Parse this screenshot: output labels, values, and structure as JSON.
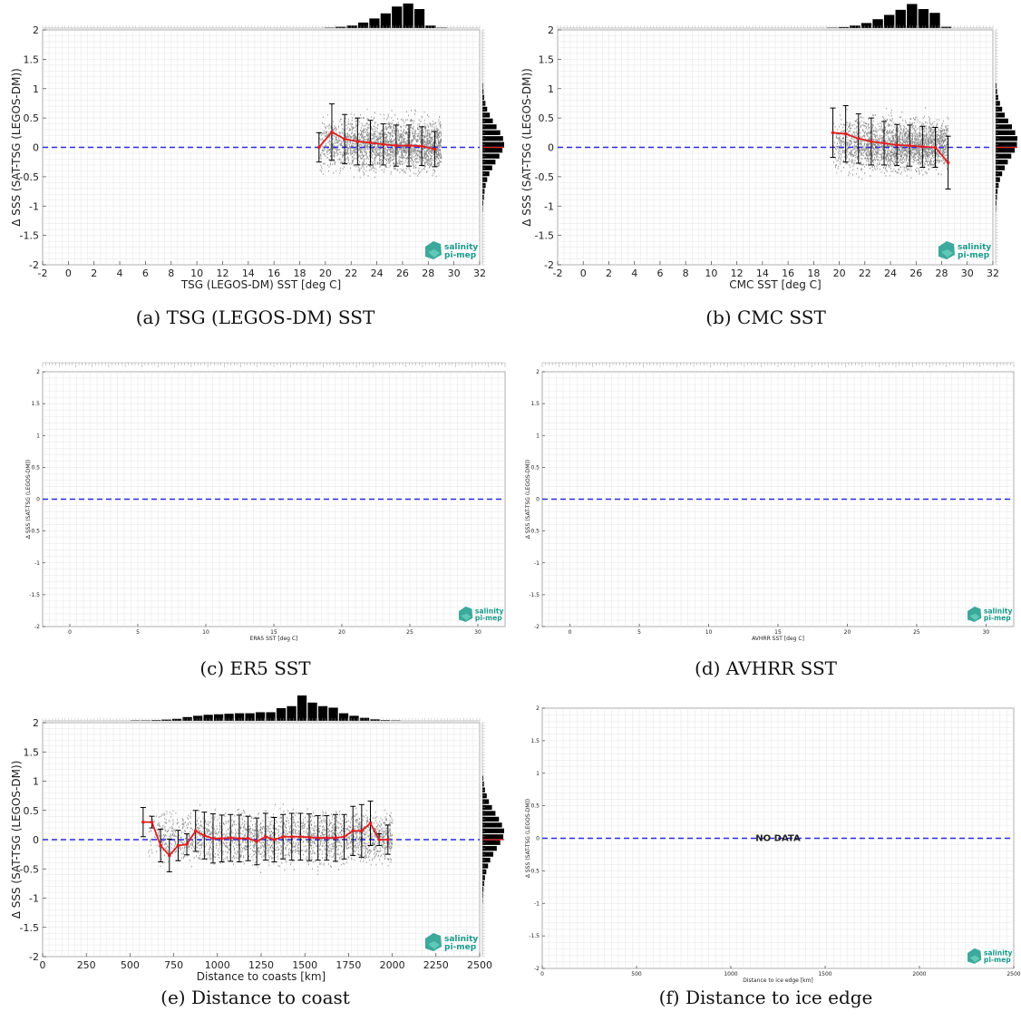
{
  "chart_data": [
    {
      "id": "a",
      "type": "scatter",
      "caption": "(a) TSG (LEGOS-DM) SST",
      "xlabel": "TSG (LEGOS-DM) SST [deg C]",
      "ylabel": "Δ SSS (SAT-TSG (LEGOS-DM))",
      "xlim": [
        -2,
        32
      ],
      "ylim": [
        -2,
        2
      ],
      "xticks": [
        -2,
        0,
        2,
        4,
        6,
        8,
        10,
        12,
        14,
        16,
        18,
        20,
        22,
        24,
        26,
        28,
        30,
        32
      ],
      "yticks": [
        -2,
        -1.5,
        -1,
        -0.5,
        0,
        0.5,
        1,
        1.5,
        2
      ],
      "scatter_x_range": [
        19.5,
        29
      ],
      "scatter_y_spread": 0.5,
      "x": [
        19.5,
        20.5,
        21.5,
        22.5,
        23.5,
        24.5,
        25.5,
        26.5,
        27.5,
        28.5
      ],
      "mean": [
        0.0,
        0.26,
        0.14,
        0.1,
        0.08,
        0.05,
        0.03,
        0.03,
        0.02,
        -0.03
      ],
      "std": [
        0.25,
        0.48,
        0.42,
        0.4,
        0.38,
        0.35,
        0.35,
        0.35,
        0.33,
        0.3
      ],
      "top_hist": [
        0,
        0.02,
        0.05,
        0.1,
        0.22,
        0.38,
        0.58,
        0.85,
        0.97,
        0.75,
        0.1,
        0.02
      ],
      "top_hist_x": [
        19,
        29.5
      ],
      "right_hist": [
        0.02,
        0.04,
        0.07,
        0.1,
        0.15,
        0.22,
        0.32,
        0.45,
        0.6,
        0.78,
        0.92,
        1.0,
        0.95,
        0.82,
        0.65,
        0.48,
        0.34,
        0.22,
        0.14,
        0.08,
        0.05,
        0.03
      ],
      "right_hist_y": [
        -1.1,
        1.1
      ]
    },
    {
      "id": "b",
      "type": "scatter",
      "caption": "(b) CMC SST",
      "xlabel": "CMC SST [deg C]",
      "ylabel": "Δ SSS (SAT-TSG (LEGOS-DM))",
      "xlim": [
        -2,
        32
      ],
      "ylim": [
        -2,
        2
      ],
      "xticks": [
        -2,
        0,
        2,
        4,
        6,
        8,
        10,
        12,
        14,
        16,
        18,
        20,
        22,
        24,
        26,
        28,
        30,
        32
      ],
      "yticks": [
        -2,
        -1.5,
        -1,
        -0.5,
        0,
        0.5,
        1,
        1.5,
        2
      ],
      "scatter_x_range": [
        19.5,
        28.5
      ],
      "scatter_y_spread": 0.5,
      "x": [
        19.5,
        20.5,
        21.5,
        22.5,
        23.5,
        24.5,
        25.5,
        26.5,
        27.5,
        28.5
      ],
      "mean": [
        0.25,
        0.23,
        0.15,
        0.1,
        0.07,
        0.04,
        0.03,
        0.01,
        0.0,
        -0.26
      ],
      "std": [
        0.42,
        0.48,
        0.42,
        0.4,
        0.37,
        0.35,
        0.35,
        0.35,
        0.34,
        0.45
      ],
      "top_hist": [
        0.02,
        0.04,
        0.1,
        0.2,
        0.35,
        0.52,
        0.72,
        0.95,
        0.75,
        0.6,
        0.05
      ],
      "top_hist_x": [
        19,
        28.8
      ],
      "right_hist": [
        0.02,
        0.04,
        0.06,
        0.09,
        0.14,
        0.2,
        0.3,
        0.42,
        0.56,
        0.72,
        0.88,
        0.98,
        1.0,
        0.9,
        0.75,
        0.58,
        0.42,
        0.3,
        0.2,
        0.12,
        0.07,
        0.04
      ],
      "right_hist_y": [
        -1.1,
        1.1
      ]
    },
    {
      "id": "c",
      "type": "scatter",
      "caption": "(c) ER5 SST",
      "xlabel": "ERA5 SST [deg C]",
      "ylabel": "Δ SSS (SAT-TSG (LEGOS-DM))",
      "xlim": [
        -2,
        32
      ],
      "ylim": [
        -2,
        2
      ],
      "xticks": [
        0,
        5,
        10,
        15,
        20,
        25,
        30
      ],
      "yticks": [
        -2,
        -1.5,
        -1,
        -0.5,
        0,
        0.5,
        1,
        1.5,
        2
      ]
    },
    {
      "id": "d",
      "type": "scatter",
      "caption": "(d) AVHRR SST",
      "xlabel": "AVHRR SST [deg C]",
      "ylabel": "Δ SSS (SAT-TSG (LEGOS-DM))",
      "xlim": [
        -2,
        32
      ],
      "ylim": [
        -2,
        2
      ],
      "xticks": [
        0,
        5,
        10,
        15,
        20,
        25,
        30
      ],
      "yticks": [
        -2,
        -1.5,
        -1,
        -0.5,
        0,
        0.5,
        1,
        1.5,
        2
      ]
    },
    {
      "id": "e",
      "type": "scatter",
      "caption": "(e) Distance to coast",
      "xlabel": "Distance to coasts [km]",
      "ylabel": "Δ SSS (SAT-TSG (LEGOS-DM))",
      "xlim": [
        0,
        2500
      ],
      "ylim": [
        -2,
        2
      ],
      "xticks": [
        0,
        250,
        500,
        750,
        1000,
        1250,
        1500,
        1750,
        2000,
        2250,
        2500
      ],
      "yticks": [
        -2,
        -1.5,
        -1,
        -0.5,
        0,
        0.5,
        1,
        1.5,
        2
      ],
      "scatter_x_range": [
        600,
        2000
      ],
      "scatter_y_spread": 0.5,
      "x": [
        575,
        625,
        675,
        725,
        775,
        825,
        875,
        925,
        975,
        1025,
        1075,
        1125,
        1175,
        1225,
        1275,
        1325,
        1375,
        1425,
        1475,
        1525,
        1575,
        1625,
        1675,
        1725,
        1775,
        1825,
        1875,
        1925,
        1975
      ],
      "mean": [
        0.3,
        0.3,
        -0.1,
        -0.27,
        -0.1,
        -0.08,
        0.15,
        0.07,
        0.02,
        0.02,
        0.03,
        0.02,
        0.02,
        -0.03,
        0.05,
        0.0,
        0.05,
        0.05,
        0.05,
        0.04,
        0.03,
        0.03,
        0.03,
        0.05,
        0.15,
        0.15,
        0.28,
        0.0,
        0.0
      ],
      "std": [
        0.25,
        0.1,
        0.28,
        0.28,
        0.26,
        0.18,
        0.35,
        0.4,
        0.42,
        0.4,
        0.4,
        0.4,
        0.38,
        0.4,
        0.4,
        0.38,
        0.38,
        0.4,
        0.4,
        0.4,
        0.38,
        0.38,
        0.4,
        0.38,
        0.42,
        0.45,
        0.38,
        0.1,
        0.25
      ],
      "top_hist": [
        0.02,
        0.02,
        0.03,
        0.05,
        0.08,
        0.15,
        0.2,
        0.24,
        0.26,
        0.28,
        0.3,
        0.3,
        0.34,
        0.34,
        0.5,
        0.58,
        1.0,
        0.72,
        0.58,
        0.52,
        0.3,
        0.2,
        0.12,
        0.06,
        0.03,
        0.02
      ],
      "top_hist_x": [
        500,
        2050
      ],
      "right_hist": [
        0.02,
        0.03,
        0.05,
        0.08,
        0.12,
        0.18,
        0.26,
        0.36,
        0.5,
        0.66,
        0.82,
        0.96,
        1.0,
        0.9,
        0.76,
        0.6,
        0.44,
        0.3,
        0.2,
        0.12,
        0.07,
        0.04
      ],
      "right_hist_y": [
        -1.1,
        1.1
      ]
    },
    {
      "id": "f",
      "type": "scatter",
      "caption": "(f) Distance to ice edge",
      "xlabel": "Distance to ice edge [km]",
      "ylabel": "Δ SSS (SAT-TSG (LEGOS-DM))",
      "xlim": [
        0,
        2500
      ],
      "ylim": [
        -2,
        2
      ],
      "xticks": [
        0,
        500,
        1000,
        1500,
        2000,
        2500
      ],
      "yticks": [
        -2,
        -1.5,
        -1,
        -0.5,
        0,
        0.5,
        1,
        1.5,
        2
      ],
      "annotation": "NO DATA"
    }
  ],
  "logo": {
    "top": "salinity",
    "bottom": "pi-mep"
  },
  "colors": {
    "mean_line": "#e02020",
    "zero_line": "#2a2ae0",
    "scatter": "#8a8a8a",
    "errorbar": "#000000",
    "hist": "#000000",
    "grid": "#e4e4e4",
    "logo": "#1a9a8a"
  }
}
